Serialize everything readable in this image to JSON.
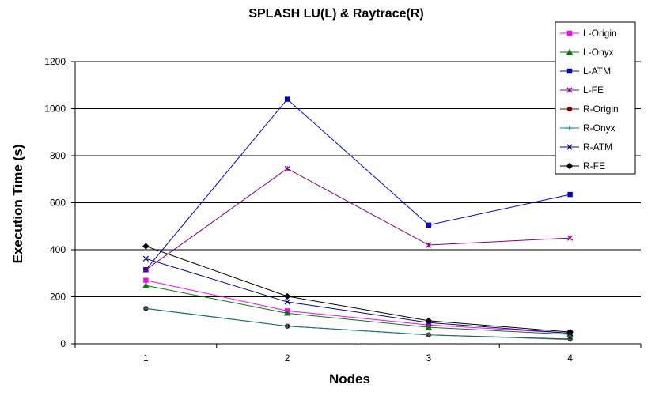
{
  "chart_data": {
    "type": "line",
    "title": "SPLASH LU(L) & Raytrace(R)",
    "xlabel": "Nodes",
    "ylabel": "Execution Time (s)",
    "categories": [
      "1",
      "2",
      "3",
      "4"
    ],
    "ylim": [
      0,
      1200
    ],
    "yticks": [
      0,
      200,
      400,
      600,
      800,
      1000,
      1200
    ],
    "grid": "horizontal",
    "legend_position": "top-right",
    "series": [
      {
        "name": "L-Origin",
        "color": "#ff00ff",
        "marker": "square",
        "values": [
          270,
          140,
          80,
          45
        ]
      },
      {
        "name": "L-Onyx",
        "color": "#008000",
        "marker": "triangle",
        "values": [
          248,
          130,
          70,
          40
        ]
      },
      {
        "name": "L-ATM",
        "color": "#0000cc",
        "marker": "square",
        "values": [
          315,
          1040,
          505,
          635
        ]
      },
      {
        "name": "L-FE",
        "color": "#800080",
        "marker": "asterisk",
        "values": [
          315,
          745,
          420,
          450
        ]
      },
      {
        "name": "R-Origin",
        "color": "#800000",
        "marker": "circle",
        "values": [
          150,
          75,
          38,
          20
        ]
      },
      {
        "name": "R-Onyx",
        "color": "#008080",
        "marker": "plus",
        "values": [
          150,
          75,
          38,
          18
        ]
      },
      {
        "name": "R-ATM",
        "color": "#000099",
        "marker": "x",
        "values": [
          362,
          178,
          90,
          45
        ]
      },
      {
        "name": "R-FE",
        "color": "#000000",
        "marker": "diamond",
        "values": [
          415,
          202,
          98,
          50
        ]
      }
    ]
  }
}
